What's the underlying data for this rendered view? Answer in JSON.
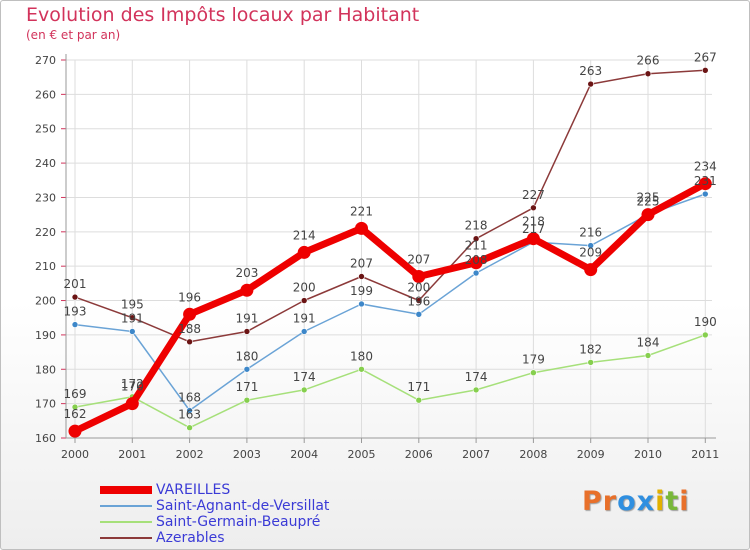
{
  "colors": {
    "title": "#d2335b",
    "legend_text": "#3b3bd6",
    "axis": "#9a9a9a",
    "grid": "#dddddd",
    "label": "#444444"
  },
  "header": {
    "title": "Evolution des Impôts locaux par Habitant",
    "subtitle": "(en € et par an)"
  },
  "brand": {
    "name": "Proxiti",
    "letters": [
      "P",
      "r",
      "o",
      "x",
      "i",
      "t",
      "i"
    ],
    "letter_colors": [
      "#e8702a",
      "#e8702a",
      "#2f8fe0",
      "#2f8fe0",
      "#e2b100",
      "#79b83a",
      "#e8702a"
    ]
  },
  "chart_data": {
    "type": "line",
    "title": "Evolution des Impôts locaux par Habitant",
    "subtitle": "(en € et par an)",
    "xlabel": "",
    "ylabel": "",
    "categories": [
      "2000",
      "2001",
      "2002",
      "2003",
      "2004",
      "2005",
      "2006",
      "2007",
      "2008",
      "2009",
      "2010",
      "2011"
    ],
    "ylim": [
      160,
      270
    ],
    "yticks": [
      160,
      170,
      180,
      190,
      200,
      210,
      220,
      230,
      240,
      250,
      260,
      270
    ],
    "grid": true,
    "legend_position": "bottom-left",
    "series": [
      {
        "name": "Saint-Germain-Beaupré",
        "color": "#a6e07a",
        "marker": "#86cf4e",
        "values": [
          169,
          172,
          163,
          171,
          174,
          180,
          171,
          174,
          179,
          182,
          184,
          190
        ]
      },
      {
        "name": "Saint-Agnant-de-Versillat",
        "color": "#6aa3d6",
        "marker": "#3d87c9",
        "values": [
          193,
          191,
          168,
          180,
          191,
          199,
          196,
          208,
          217,
          216,
          225,
          231
        ]
      },
      {
        "name": "Azerables",
        "color": "#8c3a3a",
        "marker": "#6b1414",
        "values": [
          201,
          195,
          188,
          191,
          200,
          207,
          200,
          218,
          227,
          263,
          266,
          267
        ]
      },
      {
        "name": "VAREILLES",
        "color": "#ee0000",
        "marker": "#ee0000",
        "values": [
          162,
          170,
          196,
          203,
          214,
          221,
          207,
          211,
          218,
          209,
          225,
          234
        ]
      }
    ],
    "legend_order": [
      "VAREILLES",
      "Saint-Agnant-de-Versillat",
      "Saint-Germain-Beaupré",
      "Azerables"
    ]
  }
}
